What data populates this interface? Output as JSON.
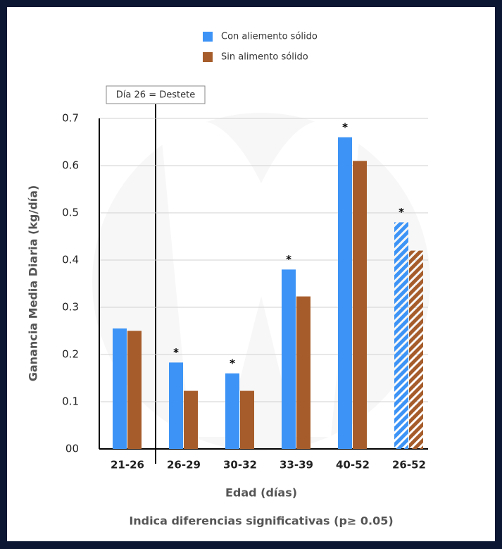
{
  "chart_data": {
    "type": "bar",
    "y_label": "Ganancia Media Diaria (kg/día)",
    "x_label": "Edad (días)",
    "footnote": "Indica diferencias significativas (p≥ 0.05)",
    "annotation": "Día 26 = Destete",
    "categories": [
      "21-26",
      "26-29",
      "30-32",
      "33-39",
      "40-52",
      "26-52"
    ],
    "series": [
      {
        "name": "Con aliemento sólido",
        "color": "#3d94f6",
        "values": [
          0.255,
          0.183,
          0.16,
          0.38,
          0.66,
          0.48
        ]
      },
      {
        "name": "Sin alimento sólido",
        "color": "#a65d2b",
        "values": [
          0.25,
          0.123,
          0.123,
          0.323,
          0.61,
          0.42
        ]
      }
    ],
    "significance_mark": "*",
    "significant": [
      false,
      true,
      true,
      true,
      true,
      true
    ],
    "hatched": [
      false,
      false,
      false,
      false,
      false,
      true
    ],
    "ylim": [
      0,
      0.7
    ],
    "yticks": [
      {
        "value": 0,
        "label": "00"
      },
      0.1,
      0.2,
      0.3,
      0.4,
      0.5,
      0.6,
      0.7
    ],
    "grid": true
  }
}
